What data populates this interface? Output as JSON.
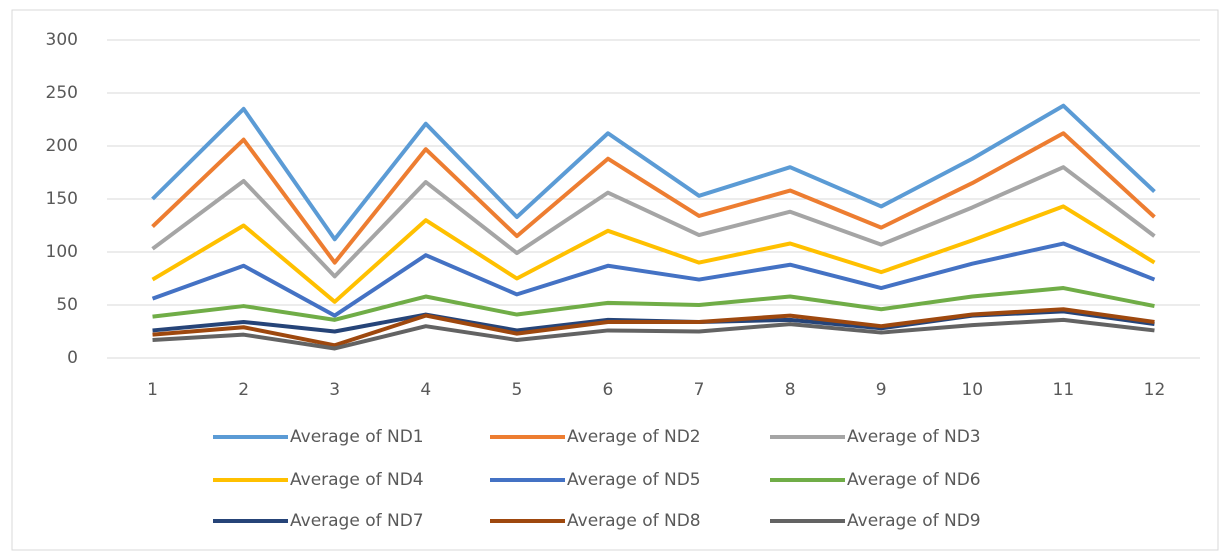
{
  "chart_data": {
    "type": "line",
    "categories": [
      "1",
      "2",
      "3",
      "4",
      "5",
      "6",
      "7",
      "8",
      "9",
      "10",
      "11",
      "12"
    ],
    "series": [
      {
        "name": "Average of ND1",
        "color": "#5b9bd5",
        "values": [
          150,
          235,
          112,
          221,
          133,
          212,
          153,
          180,
          143,
          188,
          238,
          157
        ]
      },
      {
        "name": "Average of ND2",
        "color": "#ed7d31",
        "values": [
          124,
          206,
          90,
          197,
          115,
          188,
          134,
          158,
          123,
          165,
          212,
          133
        ]
      },
      {
        "name": "Average of ND3",
        "color": "#a5a5a5",
        "values": [
          103,
          167,
          77,
          166,
          99,
          156,
          116,
          138,
          107,
          142,
          180,
          115
        ]
      },
      {
        "name": "Average of ND4",
        "color": "#ffc000",
        "values": [
          74,
          125,
          53,
          130,
          75,
          120,
          90,
          108,
          81,
          111,
          143,
          90
        ]
      },
      {
        "name": "Average of ND5",
        "color": "#4472c4",
        "values": [
          56,
          87,
          40,
          97,
          60,
          87,
          74,
          88,
          66,
          89,
          108,
          74
        ]
      },
      {
        "name": "Average of ND6",
        "color": "#70ad47",
        "values": [
          39,
          49,
          36,
          58,
          41,
          52,
          50,
          58,
          46,
          58,
          66,
          49
        ]
      },
      {
        "name": "Average of ND7",
        "color": "#264478",
        "values": [
          26,
          34,
          25,
          41,
          26,
          36,
          34,
          36,
          28,
          40,
          44,
          32
        ]
      },
      {
        "name": "Average of ND8",
        "color": "#9e480e",
        "values": [
          22,
          29,
          12,
          40,
          23,
          34,
          34,
          40,
          30,
          41,
          46,
          34
        ]
      },
      {
        "name": "Average of ND9",
        "color": "#636363",
        "values": [
          17,
          22,
          9,
          30,
          17,
          26,
          25,
          32,
          24,
          31,
          36,
          26
        ]
      }
    ],
    "ylim": [
      0,
      300
    ],
    "yticks": [
      0,
      50,
      100,
      150,
      200,
      250,
      300
    ],
    "grid": true,
    "legend": "bottom"
  }
}
